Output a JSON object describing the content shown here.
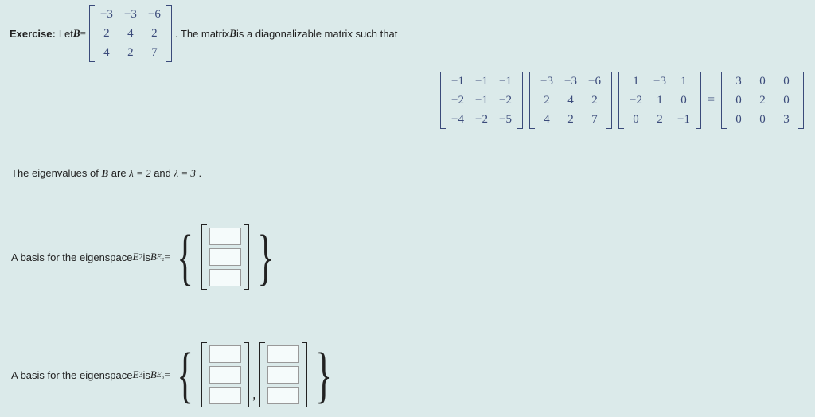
{
  "exercise": {
    "label": "Exercise:",
    "let": "Let ",
    "B": "B",
    "eq": " = ",
    "Bmatrix": [
      [
        "−3",
        "−3",
        "−6"
      ],
      [
        "2",
        "4",
        "2"
      ],
      [
        "4",
        "2",
        "7"
      ]
    ],
    "after": ". The matrix ",
    "Bagain": "B",
    "after2": " is a diagonalizable matrix such that"
  },
  "equation": {
    "M1": [
      [
        "−1",
        "−1",
        "−1"
      ],
      [
        "−2",
        "−1",
        "−2"
      ],
      [
        "−4",
        "−2",
        "−5"
      ]
    ],
    "M2": [
      [
        "−3",
        "−3",
        "−6"
      ],
      [
        "2",
        "4",
        "2"
      ],
      [
        "4",
        "2",
        "7"
      ]
    ],
    "M3": [
      [
        "1",
        "−3",
        "1"
      ],
      [
        "−2",
        "1",
        "0"
      ],
      [
        "0",
        "2",
        "−1"
      ]
    ],
    "eq": "=",
    "M4": [
      [
        "3",
        "0",
        "0"
      ],
      [
        "0",
        "2",
        "0"
      ],
      [
        "0",
        "0",
        "3"
      ]
    ]
  },
  "eigtext": {
    "prefix": "The eigenvalues of ",
    "B": "B",
    "mid": " are ",
    "l1": "λ = 2",
    "and": " and ",
    "l2": "λ = 3",
    "dot": "."
  },
  "E2": {
    "prefix": "A basis for the eigenspace ",
    "E": "E",
    "sub": "2",
    "is": " is ",
    "Bsym": "B",
    "Bsub": "E₂",
    "eq": " = "
  },
  "E3": {
    "prefix": "A basis for the eigenspace ",
    "E": "E",
    "sub": "3",
    "is": " is ",
    "Bsym": "B",
    "Bsub": "E₃",
    "eq": " = "
  },
  "colors": {
    "bg": "#dbeaea",
    "matrix": "#3a4a7a"
  }
}
